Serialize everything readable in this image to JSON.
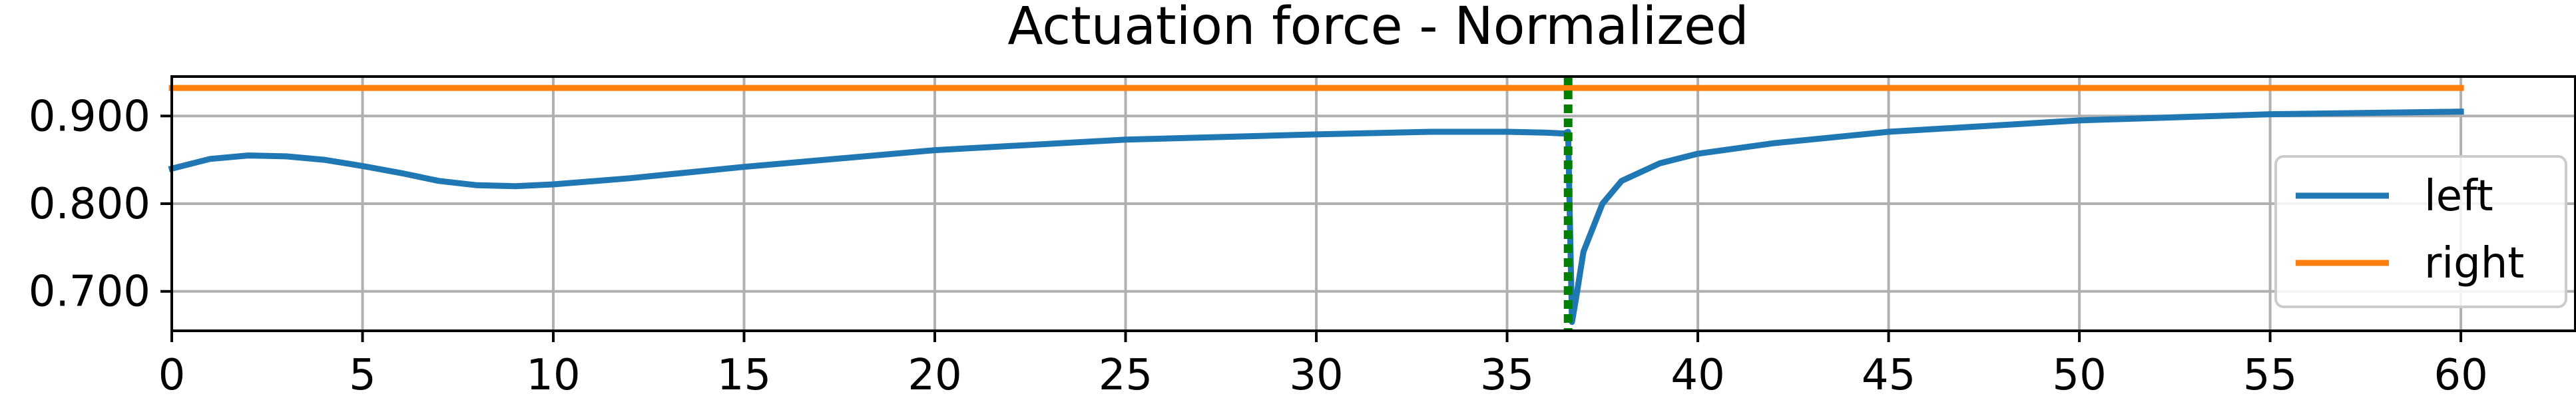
{
  "chart_data": {
    "type": "line",
    "title": "Actuation force - Normalized",
    "xlabel": "",
    "ylabel": "",
    "xlim": [
      0,
      63
    ],
    "ylim": [
      0.655,
      0.945
    ],
    "grid": true,
    "x_ticks": [
      0,
      5,
      10,
      15,
      20,
      25,
      30,
      35,
      40,
      45,
      50,
      55,
      60
    ],
    "x_tick_labels": [
      "0",
      "5",
      "10",
      "15",
      "20",
      "25",
      "30",
      "35",
      "40",
      "45",
      "50",
      "55",
      "60"
    ],
    "y_ticks": [
      0.7,
      0.8,
      0.9
    ],
    "y_tick_labels": [
      "0.700",
      "0.800",
      "0.900"
    ],
    "legend_position": "lower-right",
    "series": [
      {
        "name": "left",
        "color": "#1f77b4",
        "x": [
          0,
          1,
          2,
          3,
          4,
          5,
          6,
          7,
          8,
          9,
          10,
          12,
          15,
          20,
          25,
          30,
          33,
          35,
          36,
          36.5,
          36.6,
          36.7,
          36.8,
          37,
          37.5,
          38,
          39,
          40,
          42,
          45,
          50,
          55,
          60
        ],
        "y": [
          0.84,
          0.851,
          0.855,
          0.854,
          0.85,
          0.843,
          0.835,
          0.826,
          0.821,
          0.82,
          0.822,
          0.829,
          0.842,
          0.861,
          0.873,
          0.879,
          0.882,
          0.882,
          0.881,
          0.88,
          0.882,
          0.665,
          0.69,
          0.745,
          0.8,
          0.826,
          0.846,
          0.857,
          0.869,
          0.882,
          0.895,
          0.902,
          0.905
        ]
      },
      {
        "name": "right",
        "color": "#ff7f0e",
        "x": [
          0,
          60
        ],
        "y": [
          0.932,
          0.932
        ]
      }
    ],
    "vlines": [
      {
        "x": 36.6,
        "color": "#008000",
        "style": "dotted"
      }
    ]
  }
}
